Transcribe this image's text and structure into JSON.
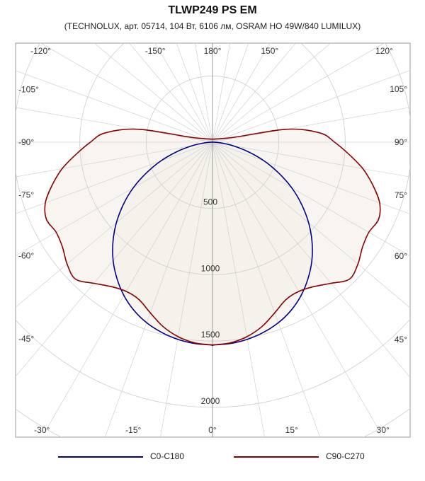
{
  "title": "TLWP249 PS EM",
  "subtitle": "(TECHNOLUX, арт. 05714, 104 Вт, 6106 лм, OSRAM HO 49W/840 LUMILUX)",
  "chart_data": {
    "type": "polar",
    "title": "TLWP249 PS EM",
    "subtitle": "(TECHNOLUX, арт. 05714, 104 Вт, 6106 лм, OSRAM HO 49W/840 LUMILUX)",
    "radial_ticks": [
      500,
      1000,
      1500,
      2000
    ],
    "radial_max": 2500,
    "grid": true,
    "legend_position": "bottom",
    "angle_labels": [
      {
        "deg": 0,
        "text": "0°"
      },
      {
        "deg": 15,
        "text": "15°"
      },
      {
        "deg": -15,
        "text": "-15°"
      },
      {
        "deg": 30,
        "text": "30°"
      },
      {
        "deg": -30,
        "text": "-30°"
      },
      {
        "deg": 45,
        "text": "45°"
      },
      {
        "deg": -45,
        "text": "-45°"
      },
      {
        "deg": 60,
        "text": "60°"
      },
      {
        "deg": -60,
        "text": "-60°"
      },
      {
        "deg": 75,
        "text": "75°"
      },
      {
        "deg": -75,
        "text": "-75°"
      },
      {
        "deg": 90,
        "text": "90°"
      },
      {
        "deg": -90,
        "text": "-90°"
      },
      {
        "deg": 105,
        "text": "105°"
      },
      {
        "deg": -105,
        "text": "-105°"
      },
      {
        "deg": 120,
        "text": "120°"
      },
      {
        "deg": -120,
        "text": "-120°"
      },
      {
        "deg": 150,
        "text": "150°"
      },
      {
        "deg": -150,
        "text": "-150°"
      },
      {
        "deg": 180,
        "text": "180°"
      }
    ],
    "series": [
      {
        "name": "C0-C180",
        "color": "#00008b",
        "angles": [
          0,
          5,
          10,
          15,
          20,
          25,
          30,
          35,
          40,
          45,
          50,
          55,
          60,
          65,
          70,
          75,
          80,
          85,
          90
        ],
        "values": [
          1530,
          1525,
          1510,
          1485,
          1450,
          1400,
          1335,
          1255,
          1165,
          1060,
          945,
          820,
          690,
          550,
          415,
          280,
          160,
          65,
          10
        ]
      },
      {
        "name": "C90-C270",
        "color": "#8b0000",
        "angles": [
          0,
          5,
          10,
          15,
          20,
          25,
          30,
          35,
          40,
          45,
          50,
          55,
          60,
          65,
          70,
          75,
          80,
          85,
          90,
          95,
          100,
          105
        ],
        "values": [
          1530,
          1520,
          1490,
          1440,
          1370,
          1310,
          1300,
          1330,
          1390,
          1460,
          1430,
          1380,
          1360,
          1380,
          1340,
          1250,
          1150,
          1030,
          920,
          810,
          560,
          120
        ]
      }
    ]
  },
  "legend": {
    "items": [
      {
        "label": "C0-C180",
        "color": "#00008b"
      },
      {
        "label": "C90-C270",
        "color": "#8b0000"
      }
    ]
  }
}
